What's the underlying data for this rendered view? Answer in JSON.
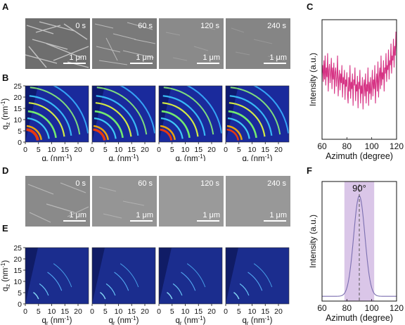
{
  "panel_labels": [
    "A",
    "B",
    "C",
    "D",
    "E",
    "F"
  ],
  "sem_top": {
    "times": [
      "0 s",
      "60 s",
      "120 s",
      "240 s"
    ],
    "scalebar": "1 μm"
  },
  "sem_bottom": {
    "times": [
      "0 s",
      "60 s",
      "120 s",
      "240 s"
    ],
    "scalebar": "1 μm"
  },
  "giwaxs": {
    "ylabel_base": "q",
    "ylabel_sub": "z",
    "ylabel_unit": " (nm",
    "ylabel_sup": "-1",
    "ylabel_close": ")",
    "xlabel_base": "q",
    "xlabel_sub": "r",
    "xlabel_unit": " (nm",
    "xlabel_sup": "-1",
    "xlabel_close": ")",
    "y_ticks": [
      "0",
      "5",
      "10",
      "15",
      "20",
      "25"
    ],
    "x_ticks": [
      "0",
      "5",
      "10",
      "15",
      "20"
    ]
  },
  "chart_data": [
    {
      "type": "line",
      "panel": "C",
      "xlabel": "Azimuth (degree)",
      "ylabel": "Intensity (a.u.)",
      "xlim": [
        60,
        120
      ],
      "x_ticks": [
        "60",
        "80",
        "100",
        "120"
      ],
      "color": "#d63384",
      "x": [
        60,
        60.5,
        61,
        61.5,
        62,
        62.5,
        63,
        63.5,
        64,
        64.5,
        65,
        65.5,
        66,
        66.5,
        67,
        67.5,
        68,
        68.5,
        69,
        69.5,
        70,
        70.5,
        71,
        71.5,
        72,
        72.5,
        73,
        73.5,
        74,
        74.5,
        75,
        75.5,
        76,
        76.5,
        77,
        77.5,
        78,
        78.5,
        79,
        79.5,
        80,
        80.5,
        81,
        81.5,
        82,
        82.5,
        83,
        83.5,
        84,
        84.5,
        85,
        85.5,
        86,
        86.5,
        87,
        87.5,
        88,
        88.5,
        89,
        89.5,
        90,
        90.5,
        91,
        91.5,
        92,
        92.5,
        93,
        93.5,
        94,
        94.5,
        95,
        95.5,
        96,
        96.5,
        97,
        97.5,
        98,
        98.5,
        99,
        99.5,
        100,
        100.5,
        101,
        101.5,
        102,
        102.5,
        103,
        103.5,
        104,
        104.5,
        105,
        105.5,
        106,
        106.5,
        107,
        107.5,
        108,
        108.5,
        109,
        109.5,
        110,
        110.5,
        111,
        111.5,
        112,
        112.5,
        113,
        113.5,
        114,
        114.5,
        115,
        115.5,
        116,
        116.5,
        117,
        117.5,
        118,
        118.5,
        119,
        119.5,
        120
      ],
      "y": [
        0.55,
        0.62,
        0.48,
        0.66,
        0.5,
        0.7,
        0.45,
        0.6,
        0.52,
        0.72,
        0.4,
        0.58,
        0.63,
        0.47,
        0.55,
        0.68,
        0.42,
        0.6,
        0.5,
        0.64,
        0.38,
        0.56,
        0.6,
        0.44,
        0.52,
        0.7,
        0.36,
        0.5,
        0.58,
        0.41,
        0.55,
        0.47,
        0.62,
        0.35,
        0.52,
        0.46,
        0.58,
        0.33,
        0.5,
        0.44,
        0.56,
        0.38,
        0.3,
        0.52,
        0.4,
        0.62,
        0.34,
        0.48,
        0.42,
        0.55,
        0.28,
        0.5,
        0.45,
        0.6,
        0.32,
        0.46,
        0.4,
        0.53,
        0.26,
        0.48,
        0.42,
        0.58,
        0.3,
        0.45,
        0.38,
        0.52,
        0.25,
        0.44,
        0.5,
        0.36,
        0.55,
        0.3,
        0.46,
        0.4,
        0.6,
        0.28,
        0.48,
        0.38,
        0.52,
        0.33,
        0.44,
        0.58,
        0.36,
        0.5,
        0.42,
        0.62,
        0.3,
        0.47,
        0.55,
        0.4,
        0.65,
        0.35,
        0.52,
        0.6,
        0.42,
        0.7,
        0.45,
        0.56,
        0.5,
        0.66,
        0.4,
        0.6,
        0.55,
        0.72,
        0.48,
        0.62,
        0.58,
        0.75,
        0.5,
        0.66,
        0.62,
        0.8,
        0.55,
        0.7,
        0.66,
        0.84,
        0.6,
        0.78,
        0.7,
        0.9,
        0.74
      ]
    },
    {
      "type": "line",
      "panel": "F",
      "xlabel": "Azimuth (degree)",
      "ylabel": "Intensity (a.u.)",
      "xlim": [
        60,
        120
      ],
      "x_ticks": [
        "60",
        "80",
        "100",
        "120"
      ],
      "color": "#7b6fb0",
      "annotation": "90°",
      "shade_range": [
        78,
        102
      ],
      "shade_color": "#cdb3e0",
      "dashed_line_x": 90,
      "peak_center": 90,
      "peak_width": 4.5,
      "baseline": 0.04
    }
  ]
}
